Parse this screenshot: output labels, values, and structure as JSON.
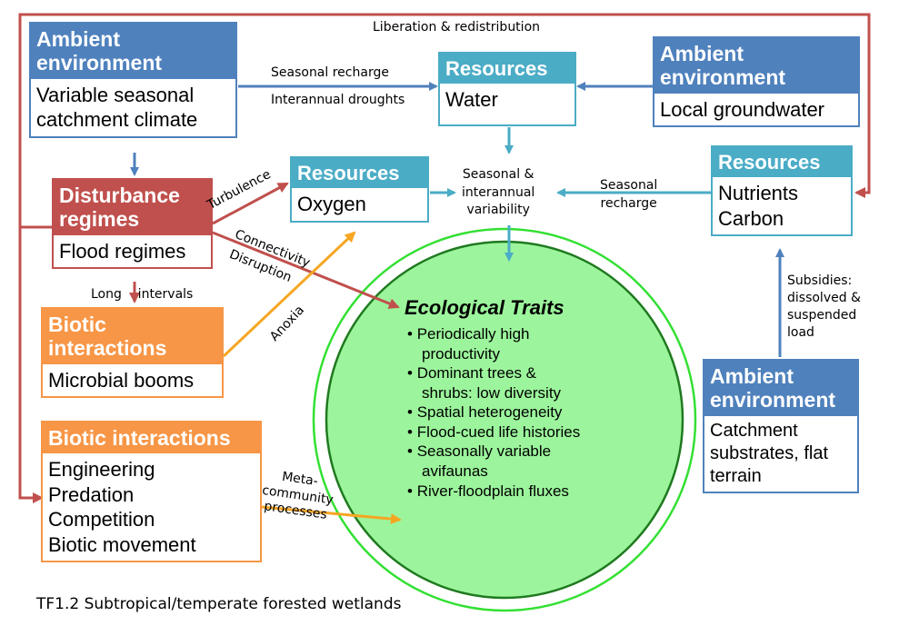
{
  "boxes": {
    "ambient_climate": {
      "header": [
        "Ambient",
        "environment"
      ],
      "body": [
        "Variable seasonal",
        "catchment climate"
      ]
    },
    "resources_water": {
      "header": [
        "Resources"
      ],
      "body": [
        "Water"
      ]
    },
    "ambient_groundwater": {
      "header": [
        "Ambient",
        "environment"
      ],
      "body": [
        "Local groundwater"
      ]
    },
    "disturbance": {
      "header": [
        "Disturbance",
        "regimes"
      ],
      "body": [
        "Flood regimes"
      ]
    },
    "resources_oxygen": {
      "header": [
        "Resources"
      ],
      "body": [
        "Oxygen"
      ]
    },
    "resources_nutrients": {
      "header": [
        "Resources"
      ],
      "body": [
        "Nutrients",
        "Carbon"
      ]
    },
    "biotic_microbial": {
      "header": [
        "Biotic",
        "interactions"
      ],
      "body": [
        "Microbial booms"
      ]
    },
    "biotic_interactions": {
      "header": [
        "Biotic interactions"
      ],
      "body": [
        "Engineering",
        "Predation",
        "Competition",
        "Biotic movement"
      ]
    },
    "ambient_substrates": {
      "header": [
        "Ambient",
        "environment"
      ],
      "body": [
        "Catchment",
        "substrates, flat",
        "terrain"
      ]
    }
  },
  "labels": {
    "liberation": "Liberation & redistribution",
    "seasonal_recharge_top": "Seasonal recharge",
    "interannual_droughts": "Interannual droughts",
    "seasonal_interannual": [
      "Seasonal &",
      "interannual",
      "variability"
    ],
    "seasonal_recharge_right": [
      "Seasonal",
      "recharge"
    ],
    "turbulence": "Turbulence",
    "connectivity": "Connectivity",
    "disruption": "Disruption",
    "long_intervals": "Long    intervals",
    "anoxia": "Anoxia",
    "subsidies": [
      "Subsidies:",
      "dissolved &",
      "suspended",
      "load"
    ],
    "meta": [
      "Meta-",
      "community",
      "processes"
    ]
  },
  "ecological_traits": {
    "title": "Ecological Traits",
    "items": [
      [
        "Periodically high",
        "productivity"
      ],
      [
        "Dominant trees &",
        "shrubs: low diversity"
      ],
      [
        "Spatial heterogeneity"
      ],
      [
        "Flood-cued life histories"
      ],
      [
        "Seasonally variable",
        "avifaunas"
      ],
      [
        "River-floodplain fluxes"
      ]
    ]
  },
  "caption": "TF1.2 Subtropical/temperate forested wetlands",
  "colors": {
    "blue": "#4f81bd",
    "teal": "#4bacc6",
    "red": "#c0504d",
    "orange": "#f79646",
    "gold": "#f5a623",
    "circle_fill": "#9cf59c",
    "circle_ring": "#33e033"
  }
}
